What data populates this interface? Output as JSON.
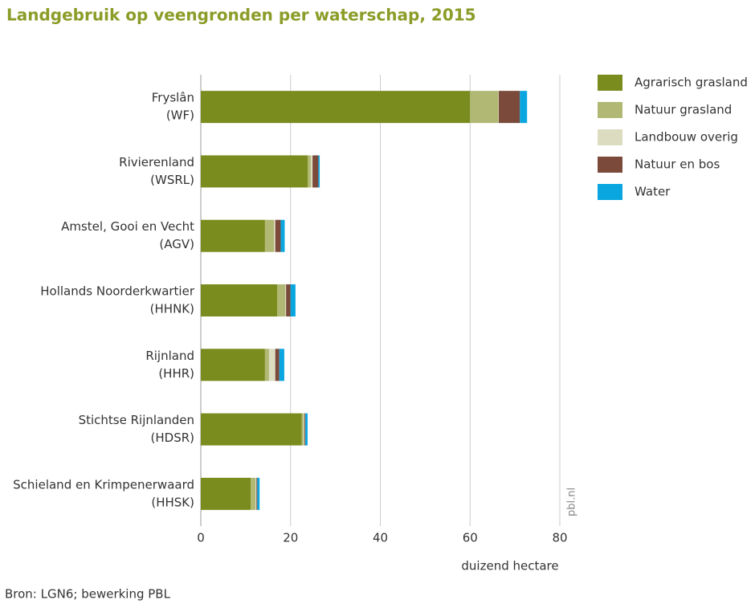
{
  "chart_data": {
    "type": "stacked-barh",
    "title": "Landgebruik op veengronden per waterschap, 2015",
    "categories": [
      [
        "Fryslân",
        "(WF)"
      ],
      [
        "Rivierenland",
        "(WSRL)"
      ],
      [
        "Amstel, Gooi en Vecht",
        "(AGV)"
      ],
      [
        "Hollands Noorderkwartier",
        "(HHNK)"
      ],
      [
        "Rijnland",
        "(HHR)"
      ],
      [
        "Stichtse Rijnlanden",
        "(HDSR)"
      ],
      [
        "Schieland en Krimpenerwaard",
        "(HHSK)"
      ]
    ],
    "series": [
      {
        "name": "Agrarisch grasland",
        "color": "#7a8c1e",
        "values": [
          60,
          23.8,
          14.3,
          17.0,
          14.3,
          22.5,
          11.1
        ]
      },
      {
        "name": "Natuur grasland",
        "color": "#b0b873",
        "values": [
          6.3,
          0.7,
          2.0,
          1.8,
          0.9,
          0.4,
          1.1
        ]
      },
      {
        "name": "Landbouw overig",
        "color": "#dcdcc0",
        "values": [
          0.1,
          0.4,
          0.3,
          0.2,
          1.4,
          0.2,
          0.2
        ]
      },
      {
        "name": "Natuur en bos",
        "color": "#7b4a3a",
        "values": [
          4.7,
          1.3,
          1.2,
          1.0,
          0.9,
          0.2,
          0.2
        ]
      },
      {
        "name": "Water",
        "color": "#0aa6e0",
        "values": [
          1.6,
          0.3,
          0.9,
          1.1,
          1.1,
          0.5,
          0.5
        ]
      }
    ],
    "xlim": [
      0,
      80
    ],
    "xticks": [
      0,
      20,
      40,
      60,
      80
    ],
    "grid": true,
    "xlabel": "duizend hectare",
    "watermark": "pbl.nl",
    "source": "Bron: LGN6; bewerking PBL",
    "legend": "right"
  }
}
